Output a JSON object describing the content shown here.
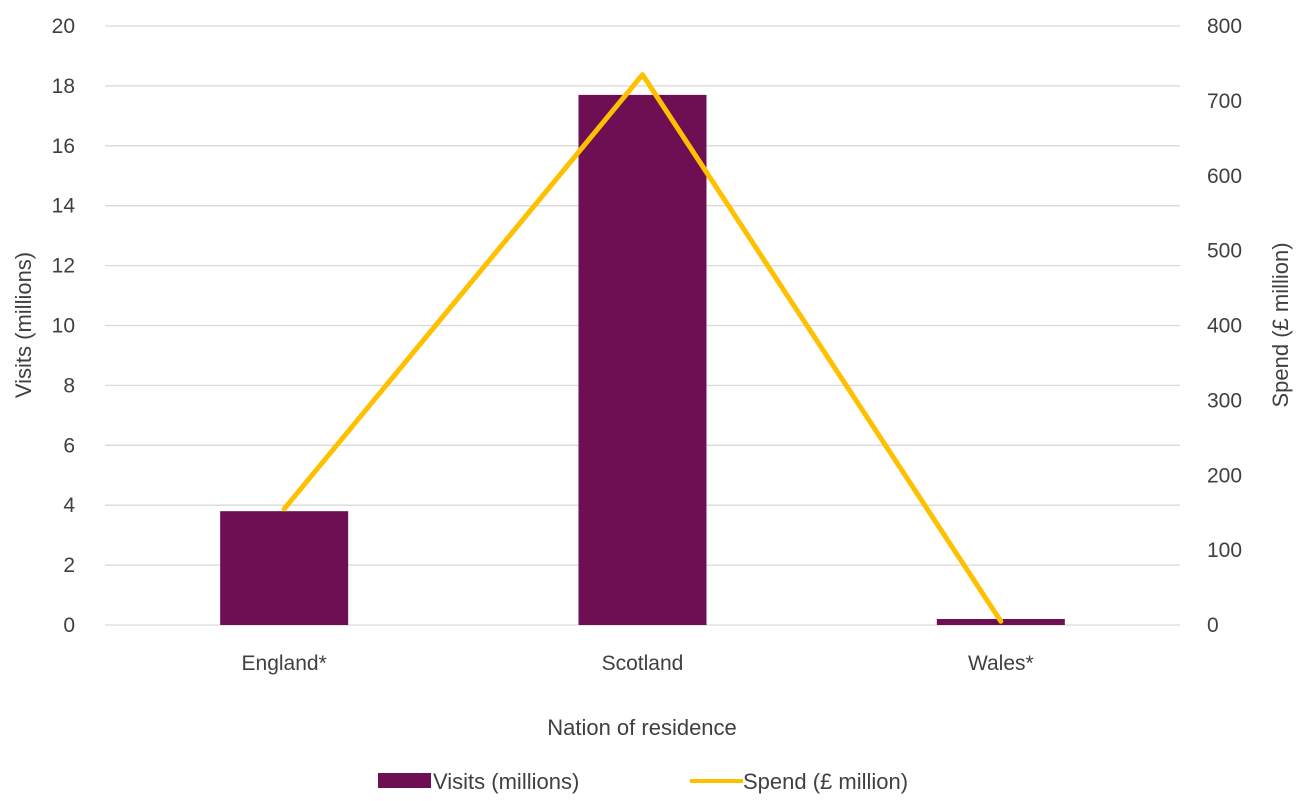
{
  "chart_data": {
    "type": "bar",
    "categories": [
      "England*",
      "Scotland",
      "Wales*"
    ],
    "series": [
      {
        "name": "Visits (millions)",
        "type": "bar",
        "axis": "left",
        "values": [
          3.8,
          17.7,
          0.2
        ],
        "color": "#6e0f54"
      },
      {
        "name": "Spend (£ million)",
        "type": "line",
        "axis": "right",
        "values": [
          155,
          735,
          5
        ],
        "color": "#ffc000"
      }
    ],
    "xlabel": "Nation of residence",
    "ylabel": "Visits (millions)",
    "y2label": "Spend (£ million)",
    "ylim": [
      0,
      20
    ],
    "y2lim": [
      0,
      800
    ],
    "yticks": [
      "0",
      "2",
      "4",
      "6",
      "8",
      "10",
      "12",
      "14",
      "16",
      "18",
      "20"
    ],
    "y2ticks": [
      "0",
      "100",
      "200",
      "300",
      "400",
      "500",
      "600",
      "700",
      "800"
    ],
    "grid": true,
    "legend_position": "bottom"
  },
  "colors": {
    "gridline": "#d9d9d9",
    "text": "#404040"
  }
}
